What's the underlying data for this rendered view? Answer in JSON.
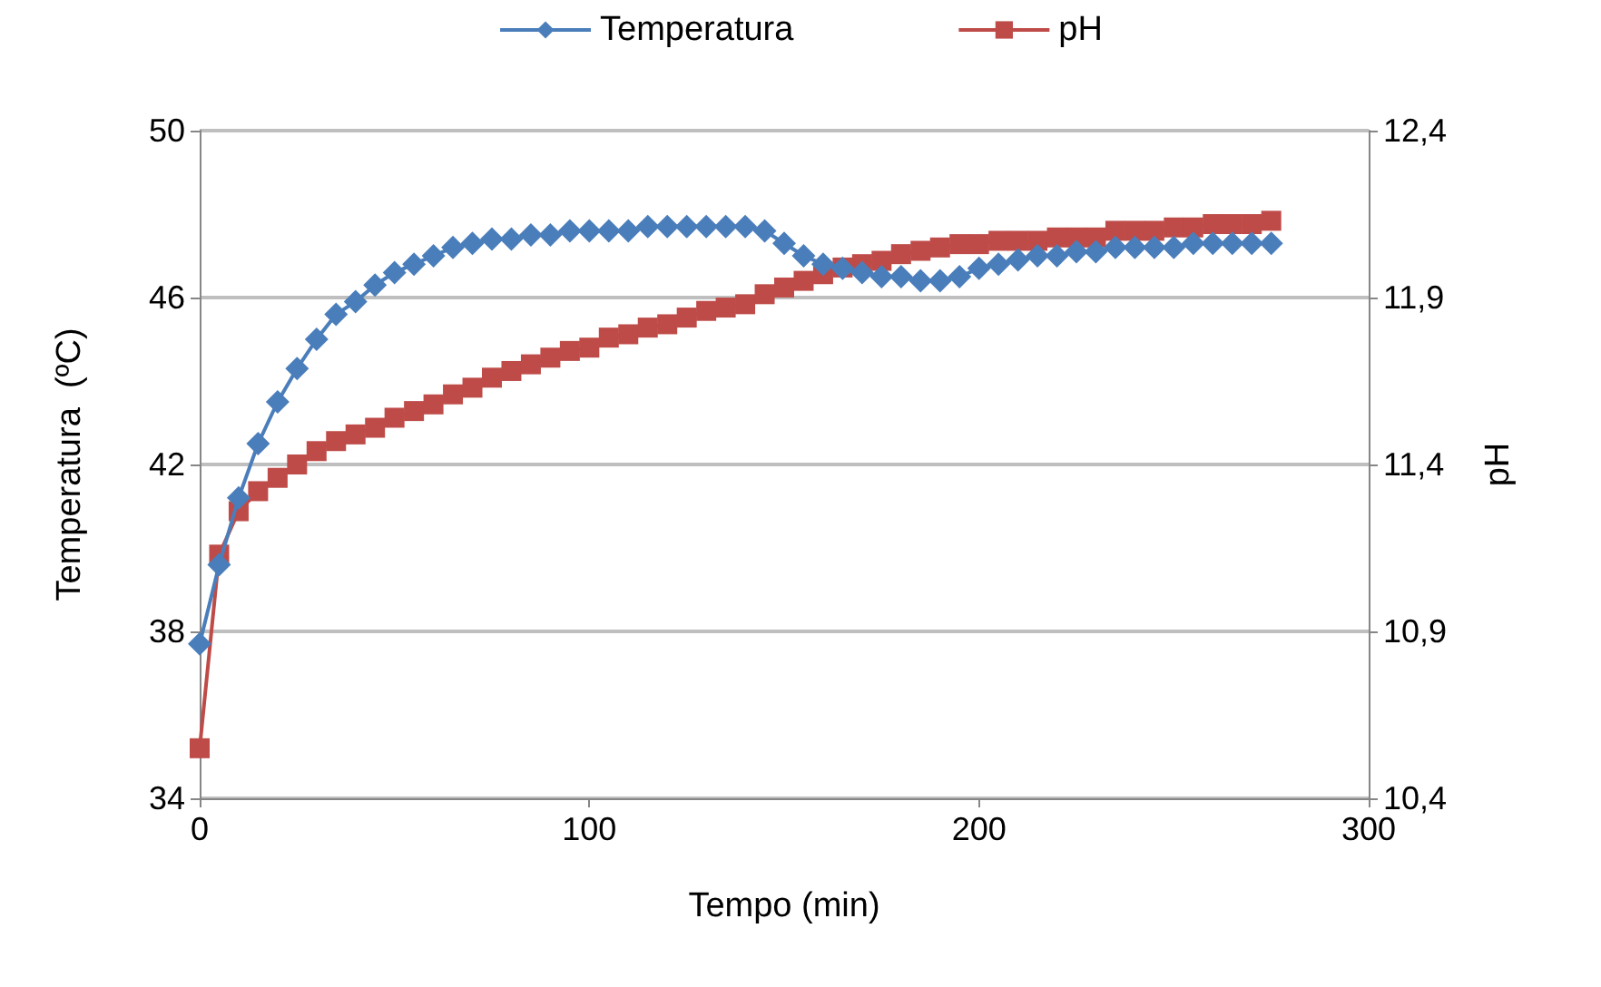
{
  "chart_data": {
    "type": "line",
    "xlabel": "Tempo (min)",
    "ylabel": "Temperatura  (ºC)",
    "y2label": "pH",
    "x": [
      0,
      5,
      10,
      15,
      20,
      25,
      30,
      35,
      40,
      45,
      50,
      55,
      60,
      65,
      70,
      75,
      80,
      85,
      90,
      95,
      100,
      105,
      110,
      115,
      120,
      125,
      130,
      135,
      140,
      145,
      150,
      155,
      160,
      165,
      170,
      175,
      180,
      185,
      190,
      195,
      200,
      205,
      210,
      215,
      220,
      225,
      230,
      235,
      240,
      245,
      250,
      255,
      260,
      265,
      270,
      275
    ],
    "series": [
      {
        "name": "Temperatura",
        "color": "#4a7ebb",
        "marker": "diamond",
        "values": [
          37.7,
          39.6,
          41.2,
          42.5,
          43.5,
          44.3,
          45.0,
          45.6,
          45.9,
          46.3,
          46.6,
          46.8,
          47.0,
          47.2,
          47.3,
          47.4,
          47.4,
          47.5,
          47.5,
          47.6,
          47.6,
          47.6,
          47.6,
          47.7,
          47.7,
          47.7,
          47.7,
          47.7,
          47.7,
          47.6,
          47.3,
          47.0,
          46.8,
          46.7,
          46.6,
          46.5,
          46.5,
          46.4,
          46.4,
          46.5,
          46.7,
          46.8,
          46.9,
          47.0,
          47.0,
          47.1,
          47.1,
          47.2,
          47.2,
          47.2,
          47.2,
          47.3,
          47.3,
          47.3,
          47.3,
          47.3
        ]
      },
      {
        "name": "pH",
        "color": "#be4b48",
        "marker": "square",
        "axis": "y2",
        "values": [
          10.55,
          11.13,
          11.26,
          11.32,
          11.36,
          11.4,
          11.44,
          11.47,
          11.49,
          11.51,
          11.54,
          11.56,
          11.58,
          11.61,
          11.63,
          11.66,
          11.68,
          11.7,
          11.72,
          11.74,
          11.75,
          11.78,
          11.79,
          11.81,
          11.82,
          11.84,
          11.86,
          11.87,
          11.88,
          11.91,
          11.93,
          11.95,
          11.97,
          11.99,
          12.0,
          12.01,
          12.03,
          12.04,
          12.05,
          12.06,
          12.06,
          12.07,
          12.07,
          12.07,
          12.08,
          12.08,
          12.08,
          12.1,
          12.1,
          12.1,
          12.11,
          12.11,
          12.12,
          12.12,
          12.12,
          12.13
        ]
      }
    ],
    "xlim": [
      0,
      300
    ],
    "xticks": [
      0,
      100,
      200,
      300
    ],
    "ylim": [
      34,
      50
    ],
    "yticks": [
      34,
      38,
      42,
      46,
      50
    ],
    "y2lim": [
      10.4,
      12.4
    ],
    "y2ticks": [
      {
        "value": 10.4,
        "label": "10,4"
      },
      {
        "value": 10.9,
        "label": "10,9"
      },
      {
        "value": 11.4,
        "label": "11,4"
      },
      {
        "value": 11.9,
        "label": "11,9"
      },
      {
        "value": 12.4,
        "label": "12,4"
      }
    ],
    "grid": "y",
    "legend": "top",
    "line_style": "solid"
  }
}
